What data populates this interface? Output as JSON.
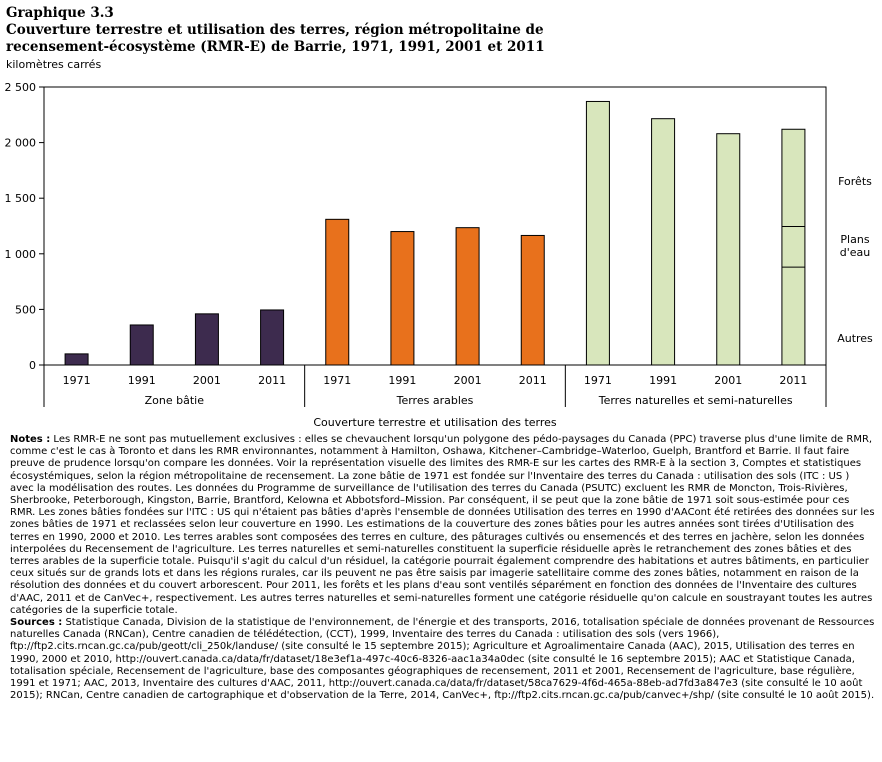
{
  "header": {
    "graph_number": "Graphique 3.3",
    "title_line1": "Couverture terrestre et utilisation des terres, région métropolitaine de",
    "title_line2": "recensement-écosystème (RMR-E) de Barrie, 1971, 1991, 2001 et 2011"
  },
  "chart_data": {
    "type": "bar",
    "title": "Couverture terrestre et utilisation des terres, région métropolitaine de recensement-écosystème (RMR-E) de Barrie, 1971, 1991, 2001 et 2011",
    "ylabel": "kilomètres carrés",
    "xlabel": "Couverture terrestre et utilisation des terres",
    "ylim": [
      0,
      2500
    ],
    "yticks": [
      0,
      500,
      1000,
      1500,
      2000,
      2500
    ],
    "ytick_labels": [
      "0",
      "500",
      "1 000",
      "1 500",
      "2 000",
      "2 500"
    ],
    "grid": false,
    "legend_placement": "right",
    "groups": [
      {
        "name": "Zone bâtie",
        "color": "#3d2b4e",
        "categories": [
          "1971",
          "1991",
          "2001",
          "2011"
        ],
        "values": [
          100,
          360,
          460,
          495
        ]
      },
      {
        "name": "Terres arables",
        "color": "#e8711c",
        "categories": [
          "1971",
          "1991",
          "2001",
          "2011"
        ],
        "values": [
          1310,
          1200,
          1235,
          1165
        ]
      },
      {
        "name": "Terres naturelles et semi-naturelles",
        "color": "#d8e6bc",
        "categories": [
          "1971",
          "1991",
          "2001",
          "2011"
        ],
        "values": [
          2370,
          2215,
          2080,
          2120
        ],
        "stacked_2011": {
          "Autres": 880,
          "Plans d'eau": 365,
          "Forêts": 875
        }
      }
    ],
    "side_labels": [
      {
        "text": "Forêts",
        "lines": [
          "Forêts"
        ]
      },
      {
        "text": "Plans d'eau",
        "lines": [
          "Plans",
          "d'eau"
        ]
      },
      {
        "text": "Autres",
        "lines": [
          "Autres"
        ]
      }
    ]
  },
  "notes": {
    "notes_label": "Notes :",
    "notes_text": "Les RMR-E ne sont pas mutuellement exclusives : elles se chevauchent lorsqu'un polygone des pédo-paysages du Canada (PPC) traverse plus d'une limite de RMR, comme c'est le cas à Toronto et dans les RMR environnantes, notamment à Hamilton, Oshawa, Kitchener–Cambridge–Waterloo, Guelph, Brantford et Barrie. Il faut faire preuve de prudence lorsqu'on compare les données. Voir la représentation visuelle des limites des RMR-E sur les cartes des RMR-E à la section 3, Comptes et statistiques écosystémiques, selon la région métropolitaine de recensement. La zone bâtie de 1971 est fondée sur l'Inventaire des terres du Canada : utilisation des sols (ITC : US ) avec la modélisation des routes. Les données du Programme de surveillance de l'utilisation des terres du Canada (PSUTC) excluent les RMR de Moncton, Trois-Rivières, Sherbrooke, Peterborough, Kingston, Barrie, Brantford, Kelowna et Abbotsford–Mission. Par conséquent, il se peut que la zone bâtie de 1971 soit sous-estimée pour ces RMR. Les zones bâties fondées sur l'ITC : US qui n'étaient pas bâties d'après l'ensemble de données Utilisation des terres en 1990 d'AACont été retirées des données sur les zones bâties de 1971 et reclassées selon leur couverture en 1990. Les estimations de la couverture des zones bâties pour les autres années sont tirées d'Utilisation des terres en 1990, 2000 et 2010. Les terres arables sont composées des terres en culture, des pâturages cultivés ou ensemencés et des terres en jachère, selon les données interpolées du Recensement de l'agriculture. Les terres naturelles et semi-naturelles constituent la superficie résiduelle après le retranchement des zones bâties et des terres arables de la superficie totale. Puisqu'il s'agit du calcul d'un résiduel, la catégorie pourrait également comprendre des habitations et autres bâtiments, en particulier ceux situés sur de grands lots et dans les régions rurales, car ils peuvent ne pas être saisis par imagerie satellitaire comme des zones bâties, notamment en raison de la résolution des données et du couvert arborescent. Pour 2011, les forêts et les plans d'eau sont ventilés séparément en fonction des données de l'Inventaire des cultures d'AAC, 2011 et de CanVec+, respectivement. Les autres terres naturelles et semi-naturelles forment une catégorie résiduelle qu'on calcule en soustrayant toutes les autres catégories de la superficie totale.",
    "sources_label": "Sources :",
    "sources_text": "Statistique Canada, Division de la statistique de l'environnement, de l'énergie et des transports, 2016, totalisation spéciale de données provenant de Ressources naturelles Canada (RNCan), Centre canadien de télédétection, (CCT), 1999, Inventaire des terres du Canada : utilisation des sols (vers 1966), ftp://ftp2.cits.rncan.gc.ca/pub/geott/cli_250k/landuse/ (site consulté le 15 septembre 2015); Agriculture et Agroalimentaire Canada (AAC), 2015, Utilisation des terres en 1990, 2000 et 2010, http://ouvert.canada.ca/data/fr/dataset/18e3ef1a-497c-40c6-8326-aac1a34a0dec (site consulté le 16 septembre 2015); AAC et Statistique Canada, totalisation spéciale, Recensement de l'agriculture, base des composantes géographiques de recensement, 2011 et 2001, Recensement de l'agriculture, base régulière, 1991 et 1971; AAC, 2013, Inventaire des cultures d'AAC, 2011, http://ouvert.canada.ca/data/fr/dataset/58ca7629-4f6d-465a-88eb-ad7fd3a847e3 (site consulté le 10 août 2015); RNCan, Centre canadien de cartographique et d'observation de la Terre, 2014, CanVec+, ftp://ftp2.cits.rncan.gc.ca/pub/canvec+/shp/ (site consulté le 10 août 2015)."
  }
}
